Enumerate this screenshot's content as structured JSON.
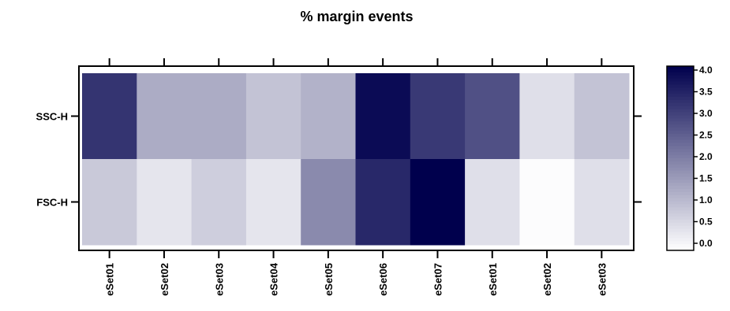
{
  "chart_data": {
    "type": "heatmap",
    "title": "% margin events",
    "xlabel": "",
    "ylabel": "",
    "columns": [
      "eSet01",
      "eSet02",
      "eSet03",
      "eSet04",
      "eSet05",
      "eSet06",
      "eSet07",
      "eSet01",
      "eSet02",
      "eSet03"
    ],
    "rows": [
      "SSC-H",
      "FSC-H"
    ],
    "values": [
      [
        3.3,
        1.2,
        1.2,
        0.8,
        1.1,
        4.0,
        3.2,
        2.8,
        0.3,
        0.8
      ],
      [
        0.7,
        0.2,
        0.6,
        0.2,
        1.8,
        3.5,
        4.2,
        0.3,
        -0.2,
        0.3
      ]
    ],
    "colorbar": {
      "ticks": [
        "4.0",
        "3.5",
        "3.0",
        "2.5",
        "2.0",
        "1.5",
        "1.0",
        "0.5",
        "0.0"
      ],
      "range": [
        -0.25,
        4.2
      ],
      "low_color": "#ffffff",
      "high_color": "#00004d"
    },
    "grid": false,
    "legend_position": "right"
  }
}
